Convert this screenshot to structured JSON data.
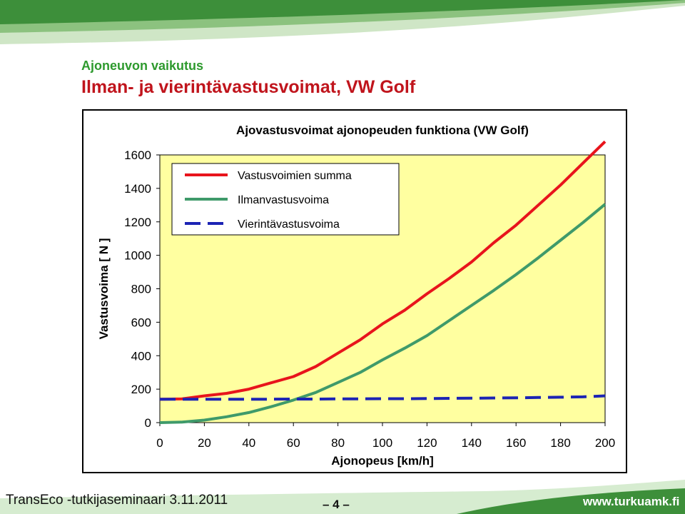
{
  "slide": {
    "kicker": "Ajoneuvon vaikutus",
    "title": "Ilman- ja vierintävastusvoimat, VW Golf"
  },
  "footer": {
    "left": "TransEco -tutkijaseminaari 3.11.2011",
    "page": "– 4 –",
    "right": "www.turkuamk.fi"
  },
  "colors": {
    "banner_green": "#3d8f3a",
    "plot_bg": "#ffffa0"
  },
  "chart_data": {
    "type": "line",
    "title": "Ajovastusvoimat ajonopeuden funktiona  (VW Golf)",
    "xlabel": "Ajonopeus [km/h]",
    "ylabel": "Vastusvoima [ N ]",
    "xlim": [
      0,
      200
    ],
    "ylim": [
      0,
      1600
    ],
    "xticks": [
      0,
      20,
      40,
      60,
      80,
      100,
      120,
      140,
      160,
      180,
      200
    ],
    "yticks": [
      0,
      200,
      400,
      600,
      800,
      1000,
      1200,
      1400,
      1600
    ],
    "grid": false,
    "legend_position": "top-left",
    "x": [
      0,
      10,
      20,
      30,
      40,
      50,
      60,
      70,
      80,
      90,
      100,
      110,
      120,
      130,
      140,
      150,
      160,
      170,
      180,
      190,
      200
    ],
    "series": [
      {
        "name": "Vastusvoimien summa",
        "color": "#e8141c",
        "style": "solid",
        "values": [
          140,
          142,
          160,
          175,
          200,
          238,
          275,
          335,
          415,
          495,
          590,
          672,
          770,
          862,
          960,
          1075,
          1180,
          1300,
          1420,
          1550,
          1680
        ]
      },
      {
        "name": "Ilmanvastusvoima",
        "color": "#3f9a6a",
        "style": "solid",
        "values": [
          0,
          3,
          15,
          35,
          60,
          95,
          135,
          180,
          240,
          300,
          375,
          445,
          520,
          610,
          700,
          790,
          885,
          985,
          1090,
          1195,
          1305
        ]
      },
      {
        "name": "Vierintävastusvoima",
        "color": "#1c24b4",
        "style": "dashed",
        "values": [
          140,
          140,
          140,
          140,
          140,
          140,
          141,
          141,
          142,
          142,
          143,
          143,
          144,
          145,
          146,
          147,
          148,
          150,
          152,
          154,
          160
        ]
      }
    ]
  }
}
